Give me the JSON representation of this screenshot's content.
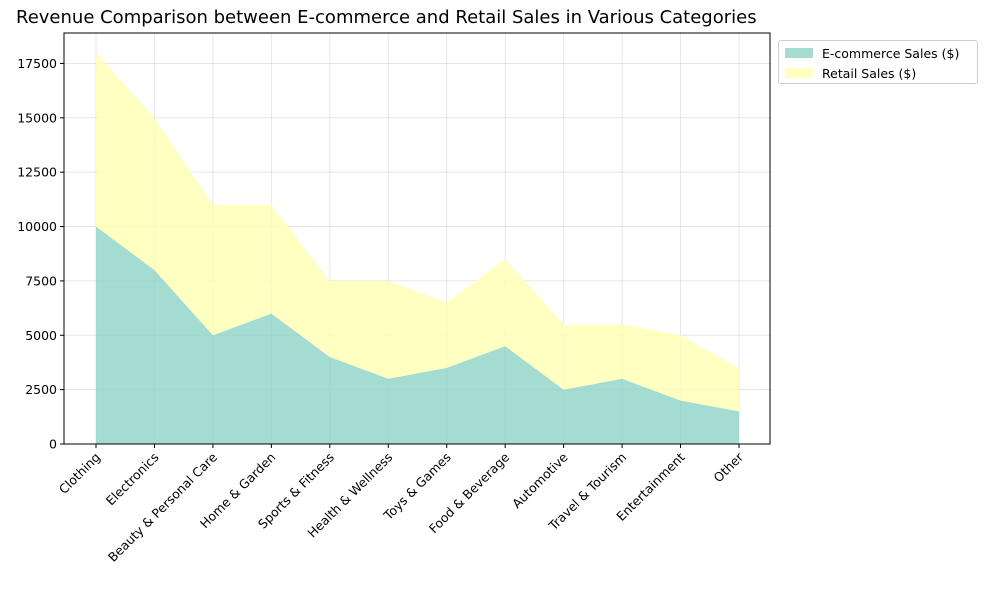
{
  "chart_data": {
    "type": "area",
    "stacked": true,
    "title": "Revenue Comparison between E-commerce and Retail Sales in Various Categories",
    "xlabel": "",
    "ylabel": "",
    "categories": [
      "Clothing",
      "Electronics",
      "Beauty & Personal Care",
      "Home & Garden",
      "Sports & Fitness",
      "Health & Wellness",
      "Toys & Games",
      "Food & Beverage",
      "Automotive",
      "Travel & Tourism",
      "Entertainment",
      "Other"
    ],
    "series": [
      {
        "name": "E-commerce Sales ($)",
        "color": "#8dd3c7",
        "values": [
          10000,
          8000,
          5000,
          6000,
          4000,
          3000,
          3500,
          4500,
          2500,
          3000,
          2000,
          1500
        ]
      },
      {
        "name": "Retail Sales ($)",
        "color": "#ffffb3",
        "values": [
          8000,
          7000,
          6000,
          5000,
          3500,
          4500,
          3000,
          4000,
          3000,
          2500,
          3000,
          2000
        ]
      }
    ],
    "ylim": [
      0,
      18900
    ],
    "yticks": [
      0,
      2500,
      5000,
      7500,
      10000,
      12500,
      15000,
      17500
    ],
    "ytick_labels": [
      "0",
      "2500",
      "5000",
      "7500",
      "10000",
      "12500",
      "15000",
      "17500"
    ],
    "grid": true,
    "legend_position": "outside-top-right"
  }
}
